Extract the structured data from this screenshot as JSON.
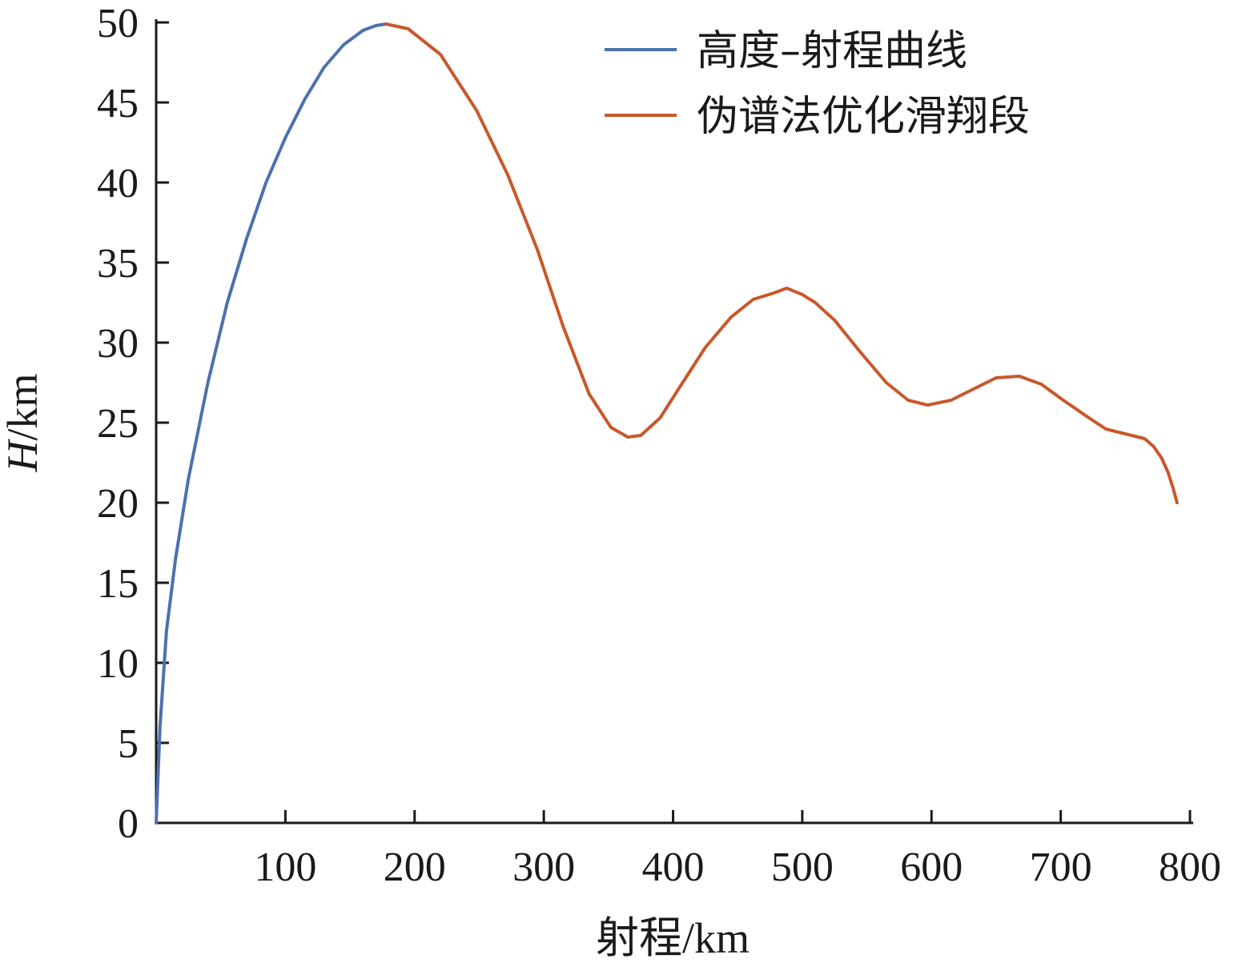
{
  "chart_data": {
    "type": "line",
    "title": "",
    "xlabel": "射程/km",
    "ylabel_var": "H",
    "ylabel_unit": "/km",
    "xlim": [
      0,
      800
    ],
    "ylim": [
      0,
      50
    ],
    "xticks": [
      100,
      200,
      300,
      400,
      500,
      600,
      700,
      800
    ],
    "yticks": [
      0,
      5,
      10,
      15,
      20,
      25,
      30,
      35,
      40,
      45,
      50
    ],
    "grid": false,
    "legend_position": "top-right",
    "series": [
      {
        "name": "高度–射程曲线",
        "color": "#4a72ad",
        "x": [
          0,
          3,
          8,
          15,
          25,
          40,
          55,
          70,
          85,
          100,
          115,
          130,
          145,
          160,
          170,
          178
        ],
        "y": [
          0,
          6,
          12,
          16.5,
          21.5,
          27.5,
          32.5,
          36.5,
          40,
          42.8,
          45.2,
          47.2,
          48.6,
          49.5,
          49.8,
          49.9
        ]
      },
      {
        "name": "伪谱法优化滑翔段",
        "color": "#c8582c",
        "x": [
          178,
          195,
          220,
          248,
          272,
          295,
          315,
          335,
          352,
          365,
          375,
          390,
          405,
          425,
          445,
          462,
          478,
          488,
          500,
          510,
          525,
          545,
          565,
          582,
          597,
          615,
          635,
          650,
          668,
          685,
          702,
          720,
          735,
          750,
          765,
          772,
          778,
          783,
          787,
          790
        ],
        "y": [
          49.9,
          49.6,
          48,
          44.5,
          40.5,
          35.8,
          31,
          26.8,
          24.7,
          24.1,
          24.2,
          25.3,
          27.2,
          29.7,
          31.6,
          32.7,
          33.1,
          33.4,
          33,
          32.5,
          31.4,
          29.4,
          27.5,
          26.4,
          26.1,
          26.4,
          27.2,
          27.8,
          27.9,
          27.4,
          26.4,
          25.4,
          24.6,
          24.3,
          24,
          23.5,
          22.8,
          21.9,
          20.9,
          20
        ]
      }
    ]
  }
}
